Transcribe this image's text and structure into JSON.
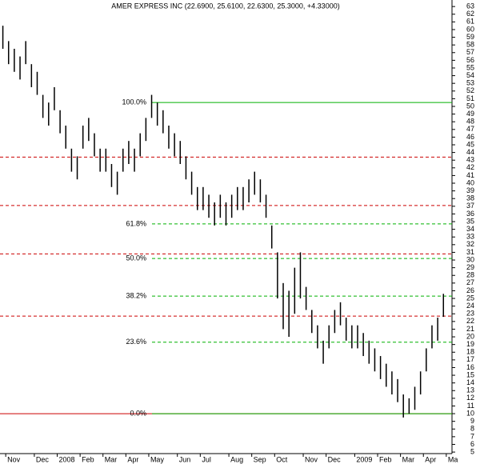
{
  "chart_data": {
    "type": "hilo",
    "title": "AMER EXPRESS INC (22.6900, 25.6100, 22.6300, 25.3000, +4.33000)",
    "categories": [
      null,
      "Nov",
      null,
      null,
      null,
      null,
      "Dec",
      null,
      null,
      null,
      "2008",
      null,
      null,
      null,
      "Feb",
      null,
      null,
      null,
      "Mar",
      null,
      null,
      null,
      "Apr",
      null,
      null,
      null,
      "May",
      null,
      null,
      null,
      null,
      "Jun",
      null,
      null,
      null,
      "Jul",
      null,
      null,
      null,
      null,
      "Aug",
      null,
      null,
      null,
      "Sep",
      null,
      null,
      null,
      "Oct",
      null,
      null,
      null,
      null,
      "Nov",
      null,
      null,
      null,
      "Dec",
      null,
      null,
      null,
      null,
      "2009",
      null,
      null,
      null,
      "Feb",
      null,
      null,
      null,
      "Mar",
      null,
      null,
      null,
      "Apr",
      null,
      null,
      null,
      "Ma"
    ],
    "high": [
      60.5,
      58.5,
      57.5,
      56.5,
      58.5,
      55.5,
      54.5,
      51.5,
      50.5,
      52.5,
      49.5,
      47.5,
      44.5,
      43.5,
      47.5,
      48.5,
      46.5,
      44.5,
      44.5,
      42.5,
      41.5,
      44.5,
      45.5,
      44.5,
      46.5,
      48.5,
      51.5,
      50.5,
      49.5,
      47.5,
      46.5,
      45.5,
      43.5,
      41.5,
      39.5,
      39.5,
      38.5,
      37.5,
      38.5,
      37.5,
      38.5,
      39.5,
      39.5,
      40.5,
      41.5,
      40.5,
      38.5,
      34.5,
      31,
      27,
      26,
      29,
      31,
      26.5,
      23.5,
      21.5,
      19.5,
      21.5,
      23.5,
      24.5,
      22.5,
      21.5,
      21.5,
      20.5,
      19.5,
      18.5,
      17.5,
      16.5,
      15.5,
      14.5,
      12.5,
      12,
      13.5,
      15.5,
      18.5,
      21.5,
      22.5,
      25.6,
      null
    ],
    "low": [
      57.5,
      55.5,
      54.5,
      53.5,
      55.5,
      52.5,
      51.5,
      48.5,
      47.5,
      49.5,
      46.5,
      44.5,
      41.5,
      40.5,
      44.5,
      45.5,
      43.5,
      41.5,
      41.5,
      39.5,
      38.5,
      41.5,
      42.5,
      41.5,
      43.5,
      45.5,
      48.5,
      47.5,
      46.5,
      44.5,
      43.5,
      42.5,
      40.5,
      38.5,
      36.5,
      36.5,
      35.5,
      34.5,
      35.5,
      34.5,
      35.5,
      36.5,
      36.5,
      37.5,
      38.5,
      37.5,
      35.5,
      31.5,
      25,
      21,
      20,
      23,
      25,
      23.5,
      20.5,
      18.5,
      16.5,
      18.5,
      20.5,
      21.5,
      19.5,
      18.5,
      18.5,
      17.5,
      16.5,
      15.5,
      14.5,
      13.5,
      12.5,
      11.5,
      9.5,
      10,
      10.5,
      12.5,
      15.5,
      18.5,
      19.5,
      22.6,
      null
    ],
    "color": "#000000",
    "fib_levels": [
      {
        "label": "100.0%",
        "value": 50.5
      },
      {
        "label": "61.8%",
        "value": 34.7
      },
      {
        "label": "50.0%",
        "value": 30.2
      },
      {
        "label": "38.2%",
        "value": 25.3
      },
      {
        "label": "23.6%",
        "value": 19.3
      },
      {
        "label": "0.0%",
        "value": 10
      }
    ],
    "fib_color": "#00b000",
    "fib_label_color": "#990000",
    "support_lines": [
      {
        "value": 43.4,
        "style": "dashed"
      },
      {
        "value": 37.1,
        "style": "dashed"
      },
      {
        "value": 30.8,
        "style": "dashed"
      },
      {
        "value": 22.7,
        "style": "dashed"
      },
      {
        "value": 10,
        "style": "solid"
      }
    ],
    "support_color": "#cc0000",
    "ylim": [
      4.8,
      63.85
    ],
    "yticks": [
      5,
      6,
      7,
      8,
      9,
      10,
      11,
      12,
      13,
      14,
      15,
      16,
      17,
      18,
      19,
      20,
      21,
      22,
      23,
      24,
      25,
      26,
      27,
      28,
      29,
      30,
      31,
      32,
      33,
      34,
      35,
      36,
      37,
      38,
      39,
      40,
      41,
      42,
      43,
      44,
      45,
      46,
      47,
      48,
      49,
      50,
      51,
      52,
      53,
      54,
      55,
      56,
      57,
      58,
      59,
      60,
      61,
      62,
      63
    ]
  }
}
